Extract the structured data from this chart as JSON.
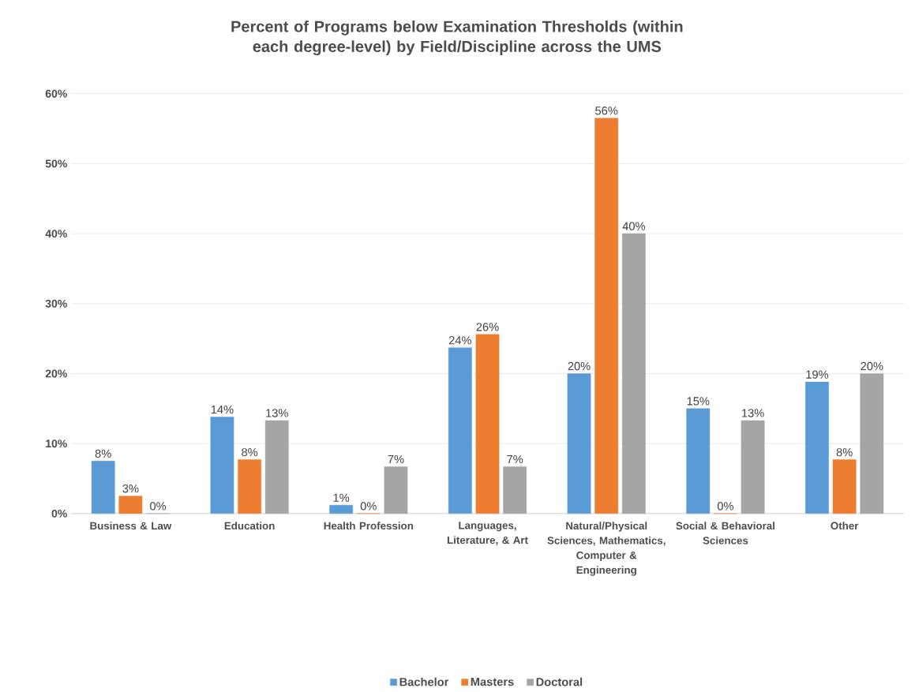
{
  "chart_data": {
    "type": "bar",
    "title": "Percent of Programs below Examination Thresholds (within each degree-level) by Field/Discipline across the UMS",
    "categories": [
      "Business & Law",
      "Education",
      "Health Profession",
      "Languages, Literature, & Art",
      "Natural/Physical Sciences, Mathematics, Computer & Engineering",
      "Social & Behavioral Sciences",
      "Other"
    ],
    "series": [
      {
        "name": "Bachelor",
        "color": "#5b9bd5",
        "values": [
          7.5,
          13.8,
          1.2,
          23.7,
          20,
          15,
          18.8
        ],
        "value_labels": [
          "8%",
          "14%",
          "1%",
          "24%",
          "20%",
          "15%",
          "19%"
        ]
      },
      {
        "name": "Masters",
        "color": "#ed7d31",
        "values": [
          2.5,
          7.7,
          0,
          25.6,
          56.5,
          0,
          7.7
        ],
        "value_labels": [
          "3%",
          "8%",
          "0%",
          "26%",
          "56%",
          "0%",
          "8%"
        ]
      },
      {
        "name": "Doctoral",
        "color": "#a5a5a5",
        "values": [
          0,
          13.3,
          6.7,
          6.7,
          40,
          13.3,
          20
        ],
        "value_labels": [
          "0%",
          "13%",
          "7%",
          "7%",
          "40%",
          "13%",
          "20%"
        ]
      }
    ],
    "ylim": [
      0,
      60
    ],
    "yticks": [
      {
        "value": 0,
        "label": "0%"
      },
      {
        "value": 10,
        "label": "10%"
      },
      {
        "value": 20,
        "label": "20%"
      },
      {
        "value": 30,
        "label": "30%"
      },
      {
        "value": 40,
        "label": "40%"
      },
      {
        "value": 50,
        "label": "50%"
      },
      {
        "value": 60,
        "label": "60%"
      }
    ],
    "grid": "y",
    "legend": "bottom"
  }
}
